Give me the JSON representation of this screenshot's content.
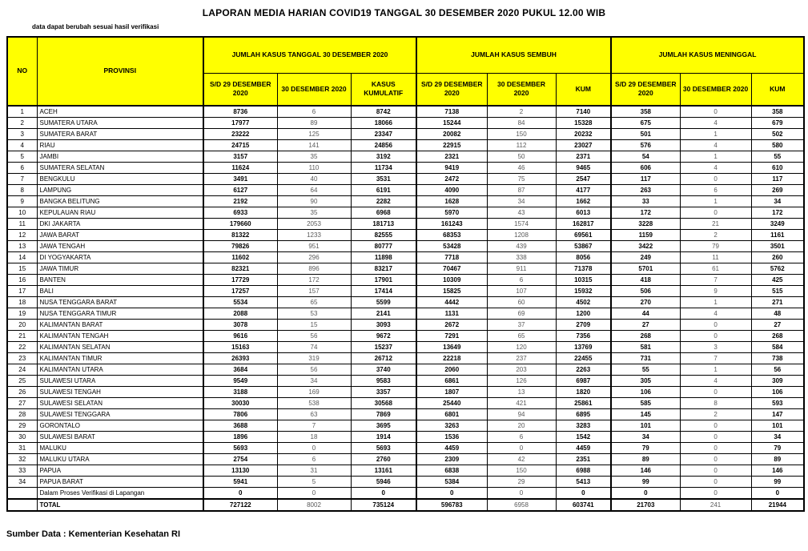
{
  "title": "LAPORAN MEDIA HARIAN COVID19 TANGGAL 30 DESEMBER 2020 PUKUL 12.00 WIB",
  "subtitle": "data dapat berubah sesuai hasil verifikasi",
  "source": "Sumber Data : Kementerian Kesehatan RI",
  "colors": {
    "header_bg": "#FFFF00",
    "border": "#000000",
    "primary_text": "#000000",
    "secondary_text": "#595959"
  },
  "table": {
    "headers": {
      "no": "NO",
      "provinsi": "PROVINSI",
      "groups": [
        "JUMLAH KASUS TANGGAL 30 DESEMBER 2020",
        "JUMLAH KASUS SEMBUH",
        "JUMLAH KASUS MENINGGAL"
      ],
      "sub": [
        "S/D 29 DESEMBER 2020",
        "30 DESEMBER 2020",
        "KASUS KUMULATIF",
        "S/D 29 DESEMBER 2020",
        "30 DESEMBER 2020",
        "KUM",
        "S/D 29 DESEMBER 2020",
        "30 DESEMBER 2020",
        "KUM"
      ]
    },
    "rows": [
      {
        "no": "1",
        "provinsi": "ACEH",
        "values": [
          "8736",
          "6",
          "8742",
          "7138",
          "2",
          "7140",
          "358",
          "0",
          "358"
        ]
      },
      {
        "no": "2",
        "provinsi": "SUMATERA UTARA",
        "values": [
          "17977",
          "89",
          "18066",
          "15244",
          "84",
          "15328",
          "675",
          "4",
          "679"
        ]
      },
      {
        "no": "3",
        "provinsi": "SUMATERA BARAT",
        "values": [
          "23222",
          "125",
          "23347",
          "20082",
          "150",
          "20232",
          "501",
          "1",
          "502"
        ]
      },
      {
        "no": "4",
        "provinsi": "RIAU",
        "values": [
          "24715",
          "141",
          "24856",
          "22915",
          "112",
          "23027",
          "576",
          "4",
          "580"
        ]
      },
      {
        "no": "5",
        "provinsi": "JAMBI",
        "values": [
          "3157",
          "35",
          "3192",
          "2321",
          "50",
          "2371",
          "54",
          "1",
          "55"
        ]
      },
      {
        "no": "6",
        "provinsi": "SUMATERA SELATAN",
        "values": [
          "11624",
          "110",
          "11734",
          "9419",
          "46",
          "9465",
          "606",
          "4",
          "610"
        ]
      },
      {
        "no": "7",
        "provinsi": "BENGKULU",
        "values": [
          "3491",
          "40",
          "3531",
          "2472",
          "75",
          "2547",
          "117",
          "0",
          "117"
        ]
      },
      {
        "no": "8",
        "provinsi": "LAMPUNG",
        "values": [
          "6127",
          "64",
          "6191",
          "4090",
          "87",
          "4177",
          "263",
          "6",
          "269"
        ]
      },
      {
        "no": "9",
        "provinsi": "BANGKA BELITUNG",
        "values": [
          "2192",
          "90",
          "2282",
          "1628",
          "34",
          "1662",
          "33",
          "1",
          "34"
        ]
      },
      {
        "no": "10",
        "provinsi": "KEPULAUAN RIAU",
        "values": [
          "6933",
          "35",
          "6968",
          "5970",
          "43",
          "6013",
          "172",
          "0",
          "172"
        ]
      },
      {
        "no": "11",
        "provinsi": "DKI JAKARTA",
        "values": [
          "179660",
          "2053",
          "181713",
          "161243",
          "1574",
          "162817",
          "3228",
          "21",
          "3249"
        ]
      },
      {
        "no": "12",
        "provinsi": "JAWA BARAT",
        "values": [
          "81322",
          "1233",
          "82555",
          "68353",
          "1208",
          "69561",
          "1159",
          "2",
          "1161"
        ]
      },
      {
        "no": "13",
        "provinsi": "JAWA TENGAH",
        "values": [
          "79826",
          "951",
          "80777",
          "53428",
          "439",
          "53867",
          "3422",
          "79",
          "3501"
        ]
      },
      {
        "no": "14",
        "provinsi": "DI YOGYAKARTA",
        "values": [
          "11602",
          "296",
          "11898",
          "7718",
          "338",
          "8056",
          "249",
          "11",
          "260"
        ]
      },
      {
        "no": "15",
        "provinsi": "JAWA TIMUR",
        "values": [
          "82321",
          "896",
          "83217",
          "70467",
          "911",
          "71378",
          "5701",
          "61",
          "5762"
        ]
      },
      {
        "no": "16",
        "provinsi": "BANTEN",
        "values": [
          "17729",
          "172",
          "17901",
          "10309",
          "6",
          "10315",
          "418",
          "7",
          "425"
        ]
      },
      {
        "no": "17",
        "provinsi": "BALI",
        "values": [
          "17257",
          "157",
          "17414",
          "15825",
          "107",
          "15932",
          "506",
          "9",
          "515"
        ]
      },
      {
        "no": "18",
        "provinsi": "NUSA TENGGARA BARAT",
        "values": [
          "5534",
          "65",
          "5599",
          "4442",
          "60",
          "4502",
          "270",
          "1",
          "271"
        ]
      },
      {
        "no": "19",
        "provinsi": "NUSA TENGGARA TIMUR",
        "values": [
          "2088",
          "53",
          "2141",
          "1131",
          "69",
          "1200",
          "44",
          "4",
          "48"
        ]
      },
      {
        "no": "20",
        "provinsi": "KALIMANTAN BARAT",
        "values": [
          "3078",
          "15",
          "3093",
          "2672",
          "37",
          "2709",
          "27",
          "0",
          "27"
        ]
      },
      {
        "no": "21",
        "provinsi": "KALIMANTAN TENGAH",
        "values": [
          "9616",
          "56",
          "9672",
          "7291",
          "65",
          "7356",
          "268",
          "0",
          "268"
        ]
      },
      {
        "no": "22",
        "provinsi": "KALIMANTAN SELATAN",
        "values": [
          "15163",
          "74",
          "15237",
          "13649",
          "120",
          "13769",
          "581",
          "3",
          "584"
        ]
      },
      {
        "no": "23",
        "provinsi": "KALIMANTAN TIMUR",
        "values": [
          "26393",
          "319",
          "26712",
          "22218",
          "237",
          "22455",
          "731",
          "7",
          "738"
        ]
      },
      {
        "no": "24",
        "provinsi": "KALIMANTAN UTARA",
        "values": [
          "3684",
          "56",
          "3740",
          "2060",
          "203",
          "2263",
          "55",
          "1",
          "56"
        ]
      },
      {
        "no": "25",
        "provinsi": "SULAWESI UTARA",
        "values": [
          "9549",
          "34",
          "9583",
          "6861",
          "126",
          "6987",
          "305",
          "4",
          "309"
        ]
      },
      {
        "no": "26",
        "provinsi": "SULAWESI TENGAH",
        "values": [
          "3188",
          "169",
          "3357",
          "1807",
          "13",
          "1820",
          "106",
          "0",
          "106"
        ]
      },
      {
        "no": "27",
        "provinsi": "SULAWESI SELATAN",
        "values": [
          "30030",
          "538",
          "30568",
          "25440",
          "421",
          "25861",
          "585",
          "8",
          "593"
        ]
      },
      {
        "no": "28",
        "provinsi": "SULAWESI TENGGARA",
        "values": [
          "7806",
          "63",
          "7869",
          "6801",
          "94",
          "6895",
          "145",
          "2",
          "147"
        ]
      },
      {
        "no": "29",
        "provinsi": "GORONTALO",
        "values": [
          "3688",
          "7",
          "3695",
          "3263",
          "20",
          "3283",
          "101",
          "0",
          "101"
        ]
      },
      {
        "no": "30",
        "provinsi": "SULAWESI BARAT",
        "values": [
          "1896",
          "18",
          "1914",
          "1536",
          "6",
          "1542",
          "34",
          "0",
          "34"
        ]
      },
      {
        "no": "31",
        "provinsi": "MALUKU",
        "values": [
          "5693",
          "0",
          "5693",
          "4459",
          "0",
          "4459",
          "79",
          "0",
          "79"
        ]
      },
      {
        "no": "32",
        "provinsi": "MALUKU UTARA",
        "values": [
          "2754",
          "6",
          "2760",
          "2309",
          "42",
          "2351",
          "89",
          "0",
          "89"
        ]
      },
      {
        "no": "33",
        "provinsi": "PAPUA",
        "values": [
          "13130",
          "31",
          "13161",
          "6838",
          "150",
          "6988",
          "146",
          "0",
          "146"
        ]
      },
      {
        "no": "34",
        "provinsi": "PAPUA BARAT",
        "values": [
          "5941",
          "5",
          "5946",
          "5384",
          "29",
          "5413",
          "99",
          "0",
          "99"
        ]
      },
      {
        "no": "",
        "provinsi": "Dalam Proses Verifikasi di Lapangan",
        "values": [
          "0",
          "0",
          "0",
          "0",
          "0",
          "0",
          "0",
          "0",
          "0"
        ]
      }
    ],
    "total_row": {
      "no": "",
      "provinsi": "TOTAL",
      "values": [
        "727122",
        "8002",
        "735124",
        "596783",
        "6958",
        "603741",
        "21703",
        "241",
        "21944"
      ]
    }
  }
}
